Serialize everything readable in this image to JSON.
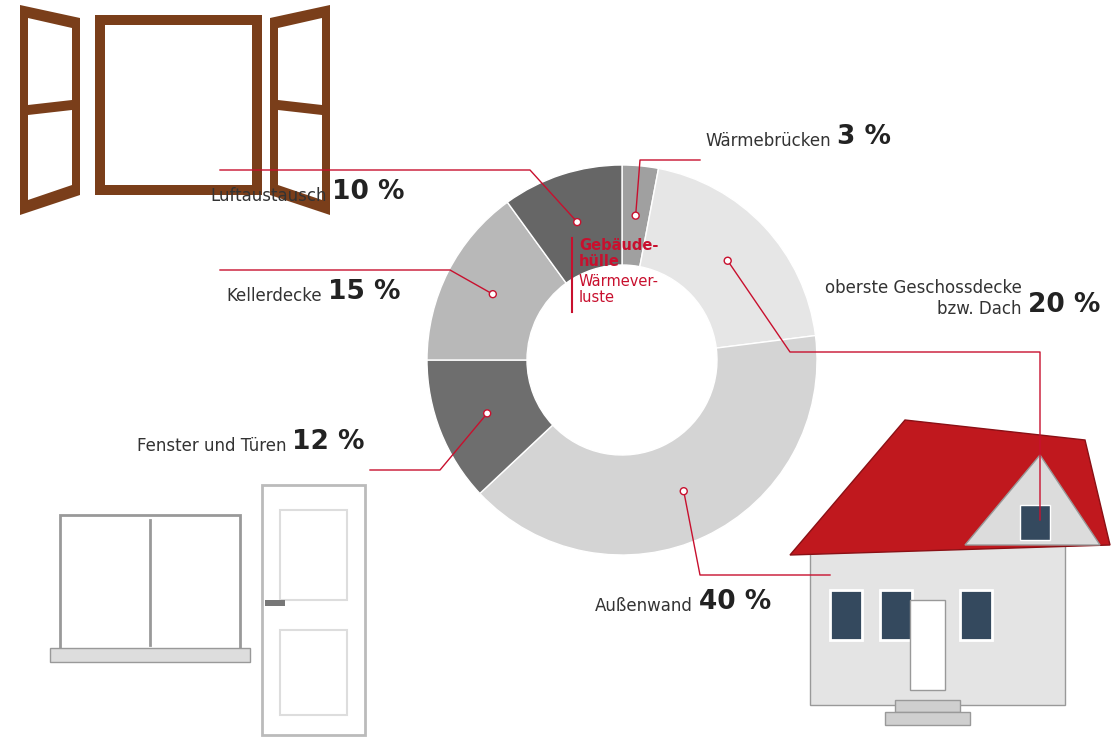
{
  "chart_data": {
    "type": "donut",
    "title": "Gebäude-\nhülle",
    "subtitle": "Wärmever-\nluste",
    "categories": [
      "Wärmebrücken",
      "oberste Geschossdecke\nbzw. Dach",
      "Außenwand",
      "Fenster und Türen",
      "Kellerdecke",
      "Luftaustausch"
    ],
    "values": [
      3,
      20,
      40,
      12,
      15,
      10
    ],
    "value_labels": [
      "3 %",
      "20 %",
      "40 %",
      "12 %",
      "15 %",
      "10 %"
    ],
    "colors": [
      "#a0a0a0",
      "#e6e6e6",
      "#d4d4d4",
      "#6e6e6e",
      "#b8b8b8",
      "#666666"
    ],
    "data_labels": true
  }
}
